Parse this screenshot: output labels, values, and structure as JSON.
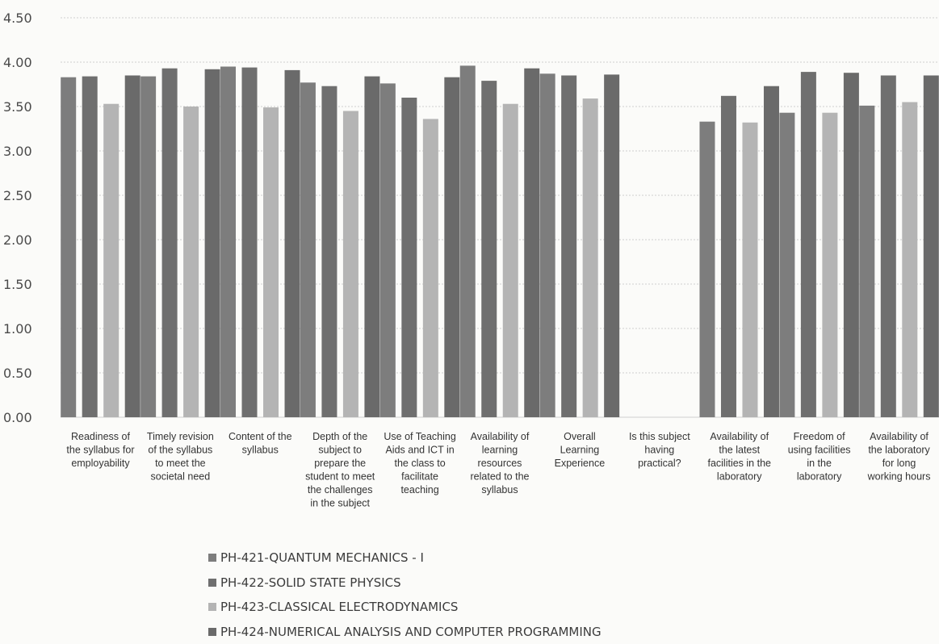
{
  "chart_data": {
    "type": "bar",
    "ylim": [
      0,
      4.5
    ],
    "yticks": [
      "0.00",
      "0.50",
      "1.00",
      "1.50",
      "2.00",
      "2.50",
      "3.00",
      "3.50",
      "4.00",
      "4.50"
    ],
    "grid": true,
    "legend_position": "bottom",
    "categories": [
      "Readiness of the syllabus for employability",
      "Timely revision of the syllabus to meet the societal need",
      "Content of the syllabus",
      "Depth of the subject to prepare the student to meet the challenges in the subject",
      "Use of Teaching Aids and ICT in the class to facilitate teaching",
      "Availability of learning resources related to the syllabus",
      "Overall Learning Experience",
      "Is this subject having practical?",
      "Availability of the latest facilities in the laboratory",
      "Freedom of using facilities in the laboratory",
      "Availability of the laboratory for long working hours"
    ],
    "category_lines": [
      [
        "Readiness of",
        "the syllabus for",
        "employability"
      ],
      [
        "Timely revision",
        "of the syllabus",
        "to meet the",
        "societal need"
      ],
      [
        "Content of the",
        "syllabus"
      ],
      [
        "Depth of the",
        "subject to",
        "prepare the",
        "student to meet",
        "the challenges",
        "in the subject"
      ],
      [
        "Use of Teaching",
        "Aids and ICT in",
        "the class to",
        "facilitate",
        "teaching"
      ],
      [
        "Availability of",
        "learning",
        "resources",
        "related to the",
        "syllabus"
      ],
      [
        "Overall",
        "Learning",
        "Experience"
      ],
      [
        "Is this subject",
        "having",
        "practical?"
      ],
      [
        "Availability of",
        "the latest",
        "facilities in the",
        "laboratory"
      ],
      [
        "Freedom of",
        "using facilities",
        "in the",
        "laboratory"
      ],
      [
        "Availability of",
        "the laboratory",
        "for long",
        "working hours"
      ]
    ],
    "series": [
      {
        "name": "PH-421-QUANTUM MECHANICS - I",
        "color": "#7d7d7d",
        "values": [
          3.83,
          3.84,
          3.95,
          3.77,
          3.76,
          3.96,
          3.87,
          0,
          3.33,
          3.43,
          3.51
        ]
      },
      {
        "name": "PH-422-SOLID STATE PHYSICS",
        "color": "#6f6f6f",
        "values": [
          3.84,
          3.93,
          3.94,
          3.73,
          3.6,
          3.79,
          3.85,
          0,
          3.62,
          3.89,
          3.85
        ]
      },
      {
        "name": "PH-423-CLASSICAL ELECTRODYNAMICS",
        "color": "#b4b4b4",
        "values": [
          3.53,
          3.5,
          3.49,
          3.45,
          3.36,
          3.53,
          3.59,
          0,
          3.32,
          3.43,
          3.55
        ]
      },
      {
        "name": "PH-424-NUMERICAL ANALYSIS AND COMPUTER PROGRAMMING",
        "color": "#6a6a6a",
        "values": [
          3.85,
          3.92,
          3.91,
          3.84,
          3.83,
          3.93,
          3.86,
          0,
          3.73,
          3.88,
          3.85
        ]
      }
    ]
  },
  "colors": {
    "grid": "#cfcfcf",
    "background": "#fbfbf9"
  }
}
